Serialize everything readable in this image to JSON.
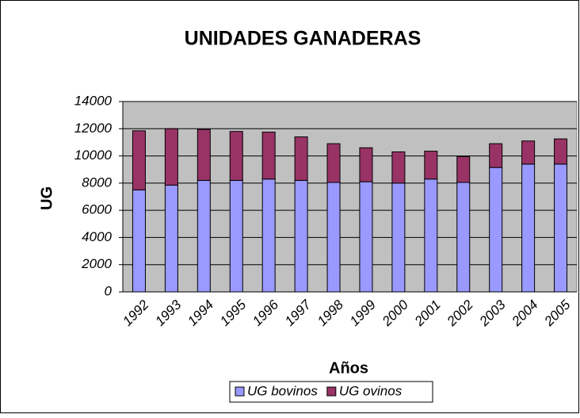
{
  "chart_data": {
    "type": "stacked_bar",
    "title": "UNIDADES GANADERAS",
    "x_label": "Años",
    "y_label": "UG",
    "categories": [
      "1992",
      "1993",
      "1994",
      "1995",
      "1996",
      "1997",
      "1998",
      "1999",
      "2000",
      "2001",
      "2002",
      "2003",
      "2004",
      "2005"
    ],
    "series": [
      {
        "name": "UG bovinos",
        "color": "#9999ff",
        "values": [
          7500,
          7850,
          8200,
          8200,
          8300,
          8200,
          8050,
          8100,
          8000,
          8300,
          8050,
          9150,
          9400,
          9400
        ]
      },
      {
        "name": "UG ovinos",
        "color": "#993366",
        "values": [
          4350,
          4150,
          3750,
          3600,
          3450,
          3200,
          2850,
          2500,
          2300,
          2050,
          1900,
          1750,
          1700,
          1850
        ]
      }
    ],
    "ylim": [
      0,
      14000
    ],
    "yticks": [
      0,
      2000,
      4000,
      6000,
      8000,
      10000,
      12000,
      14000
    ],
    "grid": true,
    "legend": "bottom"
  }
}
